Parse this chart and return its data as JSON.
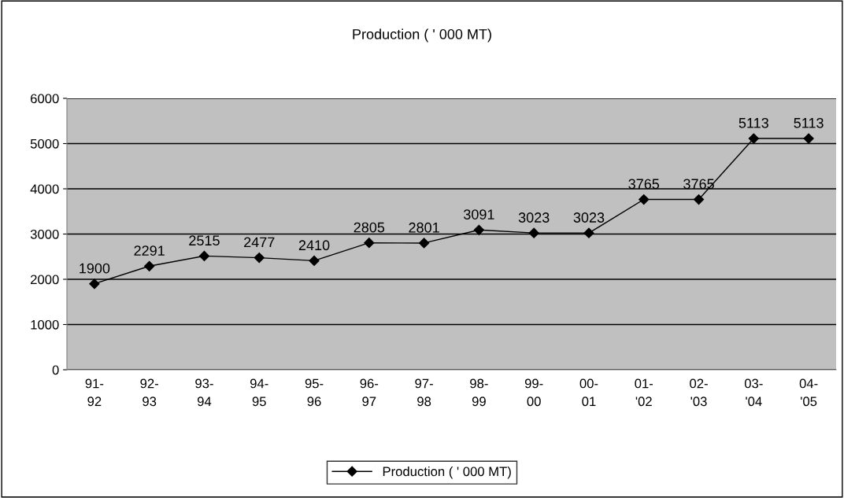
{
  "chart_data": {
    "type": "line",
    "title": "Production ( ' 000 MT)",
    "categories": [
      "91-\n92",
      "92-\n93",
      "93-\n94",
      "94-\n95",
      "95-\n96",
      "96-\n97",
      "97-\n98",
      "98-\n99",
      "99-\n00",
      "00-\n01",
      "01-\n'02",
      "02-\n'03",
      "03-\n'04",
      "04-\n'05"
    ],
    "series": [
      {
        "name": "Production ( ' 000 MT)",
        "color": "#000000",
        "values": [
          1900,
          2291,
          2515,
          2477,
          2410,
          2805,
          2801,
          3091,
          3023,
          3023,
          3765,
          3765,
          5113,
          5113
        ]
      }
    ],
    "ylim": [
      0,
      6000
    ],
    "yticks": [
      0,
      1000,
      2000,
      3000,
      4000,
      5000,
      6000
    ],
    "grid": "y",
    "legend": "bottom",
    "marker": "diamond",
    "line_style": "solid",
    "data_labels": true
  }
}
